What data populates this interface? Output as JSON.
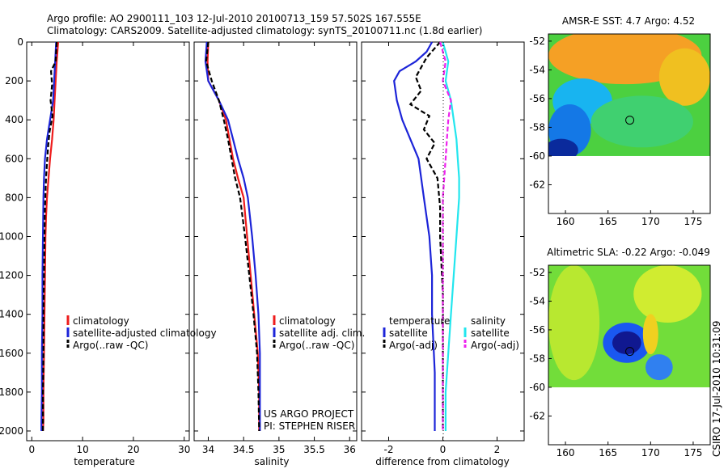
{
  "title_lines": [
    "Argo profile: AO 2900111_103 12-Jul-2010 20100713_159 57.502S 167.555E",
    "Climatology: CARS2009. Satellite-adjusted climatology: synTS_20100711.nc (1.8d earlier)"
  ],
  "credit": "CSIRO 17-Jul-2010 10:31:09",
  "project_lines": [
    "US ARGO PROJECT",
    "PI: STEPHEN RISER"
  ],
  "colors": {
    "climatology": "#ee1c1c",
    "satellite_temp": "#1c24d8",
    "argo": "#000000",
    "satellite_sal_diff": "#22e6ee",
    "argo_sal_diff": "#ee22ee"
  },
  "chart_data": [
    {
      "type": "line",
      "id": "temperature",
      "xlabel": "temperature",
      "ylabel": "",
      "xlim": [
        -1,
        31
      ],
      "ylim": [
        2050,
        0
      ],
      "xticks": [
        0,
        10,
        20,
        30
      ],
      "yticks": [
        0,
        200,
        400,
        600,
        800,
        1000,
        1200,
        1400,
        1600,
        1800,
        2000
      ],
      "legend": [
        "climatology",
        "satellite-adjusted climatology",
        "Argo(..raw -QC)"
      ],
      "series": [
        {
          "name": "climatology",
          "style": "solid",
          "color": "#ee1c1c",
          "x": [
            5.2,
            4.9,
            4.7,
            4.5,
            4.3,
            4.0,
            3.6,
            3.3,
            3.0,
            2.8,
            2.7,
            2.6,
            2.5,
            2.4,
            2.3,
            2.3,
            2.2
          ],
          "y": [
            0,
            100,
            200,
            300,
            400,
            500,
            600,
            700,
            800,
            900,
            1000,
            1200,
            1400,
            1600,
            1800,
            1950,
            2000
          ]
        },
        {
          "name": "satellite-adjusted climatology",
          "style": "solid",
          "color": "#1c24d8",
          "x": [
            4.8,
            4.6,
            4.4,
            4.2,
            3.6,
            3.0,
            2.6,
            2.4,
            2.3,
            2.2,
            2.1,
            2.1,
            2.0,
            2.0,
            1.9,
            1.9
          ],
          "y": [
            0,
            100,
            200,
            300,
            400,
            500,
            600,
            700,
            800,
            1000,
            1200,
            1400,
            1600,
            1800,
            1950,
            2000
          ]
        },
        {
          "name": "Argo(..raw -QC)",
          "style": "dash",
          "color": "#000000",
          "x": [
            4.9,
            4.7,
            3.8,
            4.0,
            3.7,
            4.1,
            3.5,
            3.2,
            3.0,
            2.8,
            2.6,
            2.5,
            2.4,
            2.3,
            2.3,
            2.2,
            2.2
          ],
          "y": [
            0,
            100,
            150,
            220,
            300,
            380,
            460,
            540,
            620,
            700,
            850,
            1000,
            1200,
            1400,
            1600,
            1800,
            2000
          ]
        }
      ]
    },
    {
      "type": "line",
      "id": "salinity",
      "xlabel": "salinity",
      "xlim": [
        33.8,
        36.1
      ],
      "ylim": [
        2050,
        0
      ],
      "xticks": [
        34,
        34.5,
        35,
        35.5,
        36
      ],
      "xtick_labels": [
        "34",
        "34.5",
        "35",
        "35.5",
        "36"
      ],
      "legend": [
        "climatology",
        "satellite adj. clim.",
        "Argo(..raw -QC)"
      ],
      "series": [
        {
          "name": "climatology",
          "style": "solid",
          "color": "#ee1c1c",
          "x": [
            34.0,
            33.99,
            34.0,
            34.15,
            34.25,
            34.3,
            34.35,
            34.42,
            34.5,
            34.55,
            34.6,
            34.65,
            34.7,
            34.72,
            34.72
          ],
          "y": [
            0,
            100,
            200,
            300,
            400,
            500,
            600,
            700,
            800,
            1000,
            1200,
            1400,
            1600,
            1800,
            2000
          ]
        },
        {
          "name": "satellite adj. clim.",
          "style": "solid",
          "color": "#1c24d8",
          "x": [
            33.98,
            33.96,
            34.0,
            34.15,
            34.28,
            34.35,
            34.42,
            34.5,
            34.56,
            34.62,
            34.67,
            34.71,
            34.73,
            34.73,
            34.73
          ],
          "y": [
            0,
            100,
            200,
            300,
            400,
            500,
            600,
            700,
            800,
            1000,
            1200,
            1400,
            1600,
            1800,
            2000
          ]
        },
        {
          "name": "Argo(..raw -QC)",
          "style": "dash",
          "color": "#000000",
          "x": [
            34.0,
            33.97,
            34.05,
            34.15,
            34.22,
            34.28,
            34.33,
            34.38,
            34.45,
            34.52,
            34.58,
            34.64,
            34.69,
            34.71,
            34.72
          ],
          "y": [
            0,
            100,
            200,
            300,
            400,
            500,
            600,
            700,
            800,
            1000,
            1200,
            1400,
            1600,
            1800,
            2000
          ]
        }
      ]
    },
    {
      "type": "line",
      "id": "difference",
      "xlabel": "difference from climatology",
      "xlim": [
        -3,
        3
      ],
      "ylim": [
        2050,
        0
      ],
      "xticks": [
        -2,
        0,
        2
      ],
      "legend_groups": [
        {
          "title": "temperature",
          "entries": [
            "satellite",
            "Argo(-adj)"
          ]
        },
        {
          "title": "salinity",
          "entries": [
            "satellite",
            "Argo(-adj)"
          ]
        }
      ],
      "series": [
        {
          "name": "temperature satellite",
          "style": "solid",
          "color": "#1c24d8",
          "x": [
            -0.4,
            -0.6,
            -1.0,
            -1.6,
            -1.8,
            -1.7,
            -1.5,
            -1.2,
            -0.9,
            -0.7,
            -0.5,
            -0.4,
            -0.4,
            -0.3,
            -0.3
          ],
          "y": [
            0,
            50,
            100,
            150,
            200,
            300,
            400,
            500,
            600,
            800,
            1000,
            1200,
            1400,
            1700,
            2000
          ]
        },
        {
          "name": "temperature Argo(-adj)",
          "style": "dash",
          "color": "#000000",
          "x": [
            -0.1,
            -0.6,
            -1.0,
            -0.8,
            -1.2,
            -0.5,
            -0.7,
            -0.3,
            -0.6,
            -0.2,
            -0.1,
            -0.1,
            0.0,
            0.0,
            0.0
          ],
          "y": [
            0,
            80,
            180,
            250,
            320,
            380,
            450,
            520,
            600,
            700,
            850,
            1000,
            1300,
            1700,
            2000
          ]
        },
        {
          "name": "salinity satellite",
          "style": "solid",
          "color": "#22e6ee",
          "x": [
            0.0,
            0.2,
            0.1,
            0.3,
            0.4,
            0.5,
            0.55,
            0.6,
            0.6,
            0.5,
            0.4,
            0.3,
            0.2,
            0.1,
            0.1
          ],
          "y": [
            0,
            100,
            200,
            300,
            400,
            500,
            600,
            700,
            800,
            1000,
            1200,
            1400,
            1600,
            1800,
            2000
          ]
        },
        {
          "name": "salinity Argo(-adj)",
          "style": "dash",
          "color": "#ee22ee",
          "x": [
            -0.1,
            0.1,
            0.0,
            0.3,
            0.2,
            0.15,
            0.1,
            0.05,
            0.0,
            0.0,
            0.0,
            0.0,
            0.0,
            0.0,
            0.0
          ],
          "y": [
            0,
            100,
            200,
            300,
            400,
            500,
            600,
            700,
            800,
            1000,
            1200,
            1400,
            1600,
            1800,
            2000
          ]
        }
      ]
    },
    {
      "type": "heatmap",
      "id": "sst_map",
      "title": "AMSR-E SST: 4.7  Argo: 4.52",
      "xlim": [
        158,
        177
      ],
      "ylim": [
        -64,
        -51.5
      ],
      "xticks": [
        160,
        165,
        170,
        175
      ],
      "yticks": [
        -52,
        -54,
        -56,
        -58,
        -60,
        -62
      ],
      "data_bottom_lat": -60,
      "float_position": [
        167.555,
        -57.502
      ],
      "blobs": [
        {
          "lon": 167,
          "lat": -53,
          "rx": 9,
          "ry": 2,
          "color": "#f5a025"
        },
        {
          "lon": 174,
          "lat": -54.5,
          "rx": 3,
          "ry": 2,
          "color": "#f0c020"
        },
        {
          "lon": 162,
          "lat": -56.2,
          "rx": 3.5,
          "ry": 1.6,
          "color": "#18b4f0"
        },
        {
          "lon": 160.5,
          "lat": -58.2,
          "rx": 2.5,
          "ry": 1.8,
          "color": "#1478e6"
        },
        {
          "lon": 159.5,
          "lat": -59.6,
          "rx": 2,
          "ry": 0.8,
          "color": "#0a2a9c"
        },
        {
          "lon": 169,
          "lat": -57.6,
          "rx": 6,
          "ry": 1.8,
          "color": "#40d070"
        }
      ]
    },
    {
      "type": "heatmap",
      "id": "sla_map",
      "title": "Altimetric SLA: -0.22  Argo: -0.049",
      "xlim": [
        158,
        177
      ],
      "ylim": [
        -64,
        -51.5
      ],
      "xticks": [
        160,
        165,
        170,
        175
      ],
      "yticks": [
        -52,
        -54,
        -56,
        -58,
        -60,
        -62
      ],
      "data_bottom_lat": -60,
      "float_position": [
        167.555,
        -57.502
      ],
      "blobs": [
        {
          "lon": 161,
          "lat": -55.5,
          "rx": 3,
          "ry": 4,
          "color": "#b8e830"
        },
        {
          "lon": 172,
          "lat": -53.5,
          "rx": 4,
          "ry": 2,
          "color": "#d0ec30"
        },
        {
          "lon": 167.2,
          "lat": -56.9,
          "rx": 2.8,
          "ry": 1.4,
          "color": "#1a58f0"
        },
        {
          "lon": 167.2,
          "lat": -56.9,
          "rx": 1.7,
          "ry": 0.8,
          "color": "#101890"
        },
        {
          "lon": 171,
          "lat": -58.6,
          "rx": 1.6,
          "ry": 0.9,
          "color": "#3080f0"
        },
        {
          "lon": 170,
          "lat": -56.3,
          "rx": 0.9,
          "ry": 1.4,
          "color": "#f0d020"
        }
      ]
    }
  ]
}
